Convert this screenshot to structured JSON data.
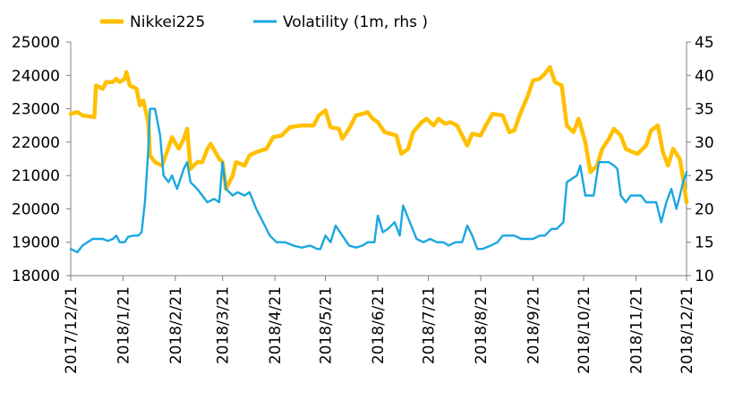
{
  "chart_data": {
    "type": "line",
    "title": "",
    "xlabel": "",
    "ylabel": "",
    "y2label": "",
    "grid": false,
    "legend": "top-left",
    "x_ticks": [
      "2017/12/21",
      "2018/1/21",
      "2018/2/21",
      "2018/3/21",
      "2018/4/21",
      "2018/5/21",
      "2018/6/21",
      "2018/7/21",
      "2018/8/21",
      "2018/9/21",
      "2018/10/21",
      "2018/11/21",
      "2018/12/21"
    ],
    "ylim": [
      18000,
      25000
    ],
    "y_ticks": [
      18000,
      19000,
      20000,
      21000,
      22000,
      23000,
      24000,
      25000
    ],
    "y2lim": [
      10,
      45
    ],
    "y2_ticks": [
      10,
      15,
      20,
      25,
      30,
      35,
      40,
      45
    ],
    "series": [
      {
        "name": "Nikkei225",
        "axis": "left",
        "color": "#FFC000",
        "points": [
          [
            "2017/12/21",
            22850
          ],
          [
            "2017/12/25",
            22900
          ],
          [
            "2017/12/28",
            22800
          ],
          [
            "2018/1/4",
            22750
          ],
          [
            "2018/1/5",
            23700
          ],
          [
            "2018/1/9",
            23600
          ],
          [
            "2018/1/11",
            23800
          ],
          [
            "2018/1/15",
            23800
          ],
          [
            "2018/1/17",
            23900
          ],
          [
            "2018/1/19",
            23800
          ],
          [
            "2018/1/22",
            23900
          ],
          [
            "2018/1/23",
            24100
          ],
          [
            "2018/1/25",
            23700
          ],
          [
            "2018/1/29",
            23600
          ],
          [
            "2018/1/31",
            23100
          ],
          [
            "2018/2/2",
            23250
          ],
          [
            "2018/2/5",
            22600
          ],
          [
            "2018/2/6",
            21600
          ],
          [
            "2018/2/9",
            21400
          ],
          [
            "2018/2/13",
            21300
          ],
          [
            "2018/2/16",
            21700
          ],
          [
            "2018/2/19",
            22150
          ],
          [
            "2018/2/23",
            21800
          ],
          [
            "2018/2/26",
            22100
          ],
          [
            "2018/2/28",
            22400
          ],
          [
            "2018/3/2",
            21200
          ],
          [
            "2018/3/6",
            21400
          ],
          [
            "2018/3/9",
            21400
          ],
          [
            "2018/3/12",
            21800
          ],
          [
            "2018/3/14",
            21950
          ],
          [
            "2018/3/19",
            21500
          ],
          [
            "2018/3/21",
            21400
          ],
          [
            "2018/3/23",
            20600
          ],
          [
            "2018/3/27",
            21000
          ],
          [
            "2018/3/29",
            21400
          ],
          [
            "2018/4/3",
            21300
          ],
          [
            "2018/4/6",
            21600
          ],
          [
            "2018/4/10",
            21700
          ],
          [
            "2018/4/16",
            21800
          ],
          [
            "2018/4/20",
            22150
          ],
          [
            "2018/4/25",
            22200
          ],
          [
            "2018/4/30",
            22450
          ],
          [
            "2018/5/7",
            22500
          ],
          [
            "2018/5/14",
            22500
          ],
          [
            "2018/5/17",
            22800
          ],
          [
            "2018/5/21",
            22950
          ],
          [
            "2018/5/24",
            22450
          ],
          [
            "2018/5/29",
            22400
          ],
          [
            "2018/5/31",
            22100
          ],
          [
            "2018/6/4",
            22400
          ],
          [
            "2018/6/8",
            22800
          ],
          [
            "2018/6/12",
            22850
          ],
          [
            "2018/6/15",
            22900
          ],
          [
            "2018/6/18",
            22700
          ],
          [
            "2018/6/21",
            22600
          ],
          [
            "2018/6/25",
            22300
          ],
          [
            "2018/7/2",
            22200
          ],
          [
            "2018/7/5",
            21650
          ],
          [
            "2018/7/9",
            21800
          ],
          [
            "2018/7/12",
            22300
          ],
          [
            "2018/7/17",
            22600
          ],
          [
            "2018/7/20",
            22700
          ],
          [
            "2018/7/24",
            22500
          ],
          [
            "2018/7/27",
            22700
          ],
          [
            "2018/7/31",
            22550
          ],
          [
            "2018/8/3",
            22600
          ],
          [
            "2018/8/7",
            22500
          ],
          [
            "2018/8/13",
            21900
          ],
          [
            "2018/8/16",
            22250
          ],
          [
            "2018/8/21",
            22200
          ],
          [
            "2018/8/24",
            22500
          ],
          [
            "2018/8/28",
            22850
          ],
          [
            "2018/9/3",
            22800
          ],
          [
            "2018/9/7",
            22300
          ],
          [
            "2018/9/10",
            22350
          ],
          [
            "2018/9/13",
            22800
          ],
          [
            "2018/9/18",
            23400
          ],
          [
            "2018/9/21",
            23850
          ],
          [
            "2018/9/25",
            23900
          ],
          [
            "2018/9/28",
            24050
          ],
          [
            "2018/10/1",
            24250
          ],
          [
            "2018/10/4",
            23800
          ],
          [
            "2018/10/8",
            23700
          ],
          [
            "2018/10/11",
            22500
          ],
          [
            "2018/10/15",
            22300
          ],
          [
            "2018/10/18",
            22700
          ],
          [
            "2018/10/22",
            22000
          ],
          [
            "2018/10/25",
            21100
          ],
          [
            "2018/10/29",
            21300
          ],
          [
            "2018/11/1",
            21800
          ],
          [
            "2018/11/5",
            22100
          ],
          [
            "2018/11/8",
            22400
          ],
          [
            "2018/11/12",
            22200
          ],
          [
            "2018/11/15",
            21800
          ],
          [
            "2018/11/19",
            21700
          ],
          [
            "2018/11/22",
            21650
          ],
          [
            "2018/11/27",
            21900
          ],
          [
            "2018/11/30",
            22350
          ],
          [
            "2018/12/4",
            22500
          ],
          [
            "2018/12/7",
            21700
          ],
          [
            "2018/12/10",
            21300
          ],
          [
            "2018/12/13",
            21800
          ],
          [
            "2018/12/17",
            21500
          ],
          [
            "2018/12/19",
            20900
          ],
          [
            "2018/12/21",
            20200
          ]
        ]
      },
      {
        "name": "Volatility (1m, rhs )",
        "axis": "right",
        "color": "#1AA7E0",
        "points": [
          [
            "2017/12/21",
            14
          ],
          [
            "2017/12/25",
            13.5
          ],
          [
            "2017/12/28",
            14.5
          ],
          [
            "2018/1/3",
            15.5
          ],
          [
            "2018/1/9",
            15.5
          ],
          [
            "2018/1/12",
            15.2
          ],
          [
            "2018/1/15",
            15.5
          ],
          [
            "2018/1/17",
            16
          ],
          [
            "2018/1/19",
            15
          ],
          [
            "2018/1/22",
            15
          ],
          [
            "2018/1/24",
            15.8
          ],
          [
            "2018/1/27",
            16
          ],
          [
            "2018/1/30",
            16
          ],
          [
            "2018/2/1",
            16.5
          ],
          [
            "2018/2/3",
            21
          ],
          [
            "2018/2/5",
            29
          ],
          [
            "2018/2/6",
            35
          ],
          [
            "2018/2/9",
            35
          ],
          [
            "2018/2/12",
            31
          ],
          [
            "2018/2/14",
            25
          ],
          [
            "2018/2/17",
            24
          ],
          [
            "2018/2/19",
            25
          ],
          [
            "2018/2/22",
            23
          ],
          [
            "2018/2/26",
            26
          ],
          [
            "2018/2/28",
            27
          ],
          [
            "2018/3/2",
            24
          ],
          [
            "2018/3/6",
            23
          ],
          [
            "2018/3/9",
            22
          ],
          [
            "2018/3/12",
            21
          ],
          [
            "2018/3/16",
            21.5
          ],
          [
            "2018/3/19",
            21
          ],
          [
            "2018/3/21",
            27
          ],
          [
            "2018/3/23",
            23
          ],
          [
            "2018/3/27",
            22
          ],
          [
            "2018/3/30",
            22.5
          ],
          [
            "2018/4/3",
            22
          ],
          [
            "2018/4/6",
            22.5
          ],
          [
            "2018/4/10",
            20
          ],
          [
            "2018/4/14",
            18
          ],
          [
            "2018/4/18",
            16
          ],
          [
            "2018/4/22",
            15
          ],
          [
            "2018/4/27",
            15
          ],
          [
            "2018/5/2",
            14.5
          ],
          [
            "2018/5/7",
            14.2
          ],
          [
            "2018/5/12",
            14.5
          ],
          [
            "2018/5/16",
            14
          ],
          [
            "2018/5/18",
            14
          ],
          [
            "2018/5/21",
            16
          ],
          [
            "2018/5/24",
            15
          ],
          [
            "2018/5/27",
            17.5
          ],
          [
            "2018/5/31",
            16
          ],
          [
            "2018/6/4",
            14.5
          ],
          [
            "2018/6/8",
            14.2
          ],
          [
            "2018/6/12",
            14.5
          ],
          [
            "2018/6/15",
            15
          ],
          [
            "2018/6/19",
            15
          ],
          [
            "2018/6/21",
            19
          ],
          [
            "2018/6/24",
            16.5
          ],
          [
            "2018/6/27",
            17
          ],
          [
            "2018/7/1",
            18
          ],
          [
            "2018/7/4",
            16
          ],
          [
            "2018/7/6",
            20.5
          ],
          [
            "2018/7/10",
            18
          ],
          [
            "2018/7/14",
            15.5
          ],
          [
            "2018/7/18",
            15
          ],
          [
            "2018/7/22",
            15.5
          ],
          [
            "2018/7/26",
            15
          ],
          [
            "2018/7/30",
            15
          ],
          [
            "2018/8/2",
            14.5
          ],
          [
            "2018/8/6",
            15
          ],
          [
            "2018/8/10",
            15
          ],
          [
            "2018/8/13",
            17.5
          ],
          [
            "2018/8/16",
            16
          ],
          [
            "2018/8/19",
            14
          ],
          [
            "2018/8/22",
            14
          ],
          [
            "2018/8/27",
            14.5
          ],
          [
            "2018/8/31",
            15
          ],
          [
            "2018/9/3",
            16
          ],
          [
            "2018/9/6",
            16
          ],
          [
            "2018/9/10",
            16
          ],
          [
            "2018/9/14",
            15.5
          ],
          [
            "2018/9/18",
            15.5
          ],
          [
            "2018/9/21",
            15.5
          ],
          [
            "2018/9/25",
            16
          ],
          [
            "2018/9/28",
            16
          ],
          [
            "2018/10/2",
            17
          ],
          [
            "2018/10/5",
            17
          ],
          [
            "2018/10/9",
            18
          ],
          [
            "2018/10/11",
            24
          ],
          [
            "2018/10/14",
            24.5
          ],
          [
            "2018/10/17",
            25
          ],
          [
            "2018/10/19",
            26.5
          ],
          [
            "2018/10/22",
            22
          ],
          [
            "2018/10/24",
            22
          ],
          [
            "2018/10/27",
            22
          ],
          [
            "2018/10/30",
            27
          ],
          [
            "2018/11/2",
            27
          ],
          [
            "2018/11/5",
            27
          ],
          [
            "2018/11/8",
            26.5
          ],
          [
            "2018/11/10",
            26
          ],
          [
            "2018/11/12",
            22
          ],
          [
            "2018/11/15",
            21
          ],
          [
            "2018/11/18",
            22
          ],
          [
            "2018/11/21",
            22
          ],
          [
            "2018/11/24",
            22
          ],
          [
            "2018/11/27",
            21
          ],
          [
            "2018/11/30",
            21
          ],
          [
            "2018/12/3",
            21
          ],
          [
            "2018/12/6",
            18
          ],
          [
            "2018/12/9",
            21
          ],
          [
            "2018/12/12",
            23
          ],
          [
            "2018/12/15",
            20
          ],
          [
            "2018/12/17",
            22
          ],
          [
            "2018/12/19",
            24
          ],
          [
            "2018/12/21",
            25.5
          ]
        ]
      }
    ]
  }
}
